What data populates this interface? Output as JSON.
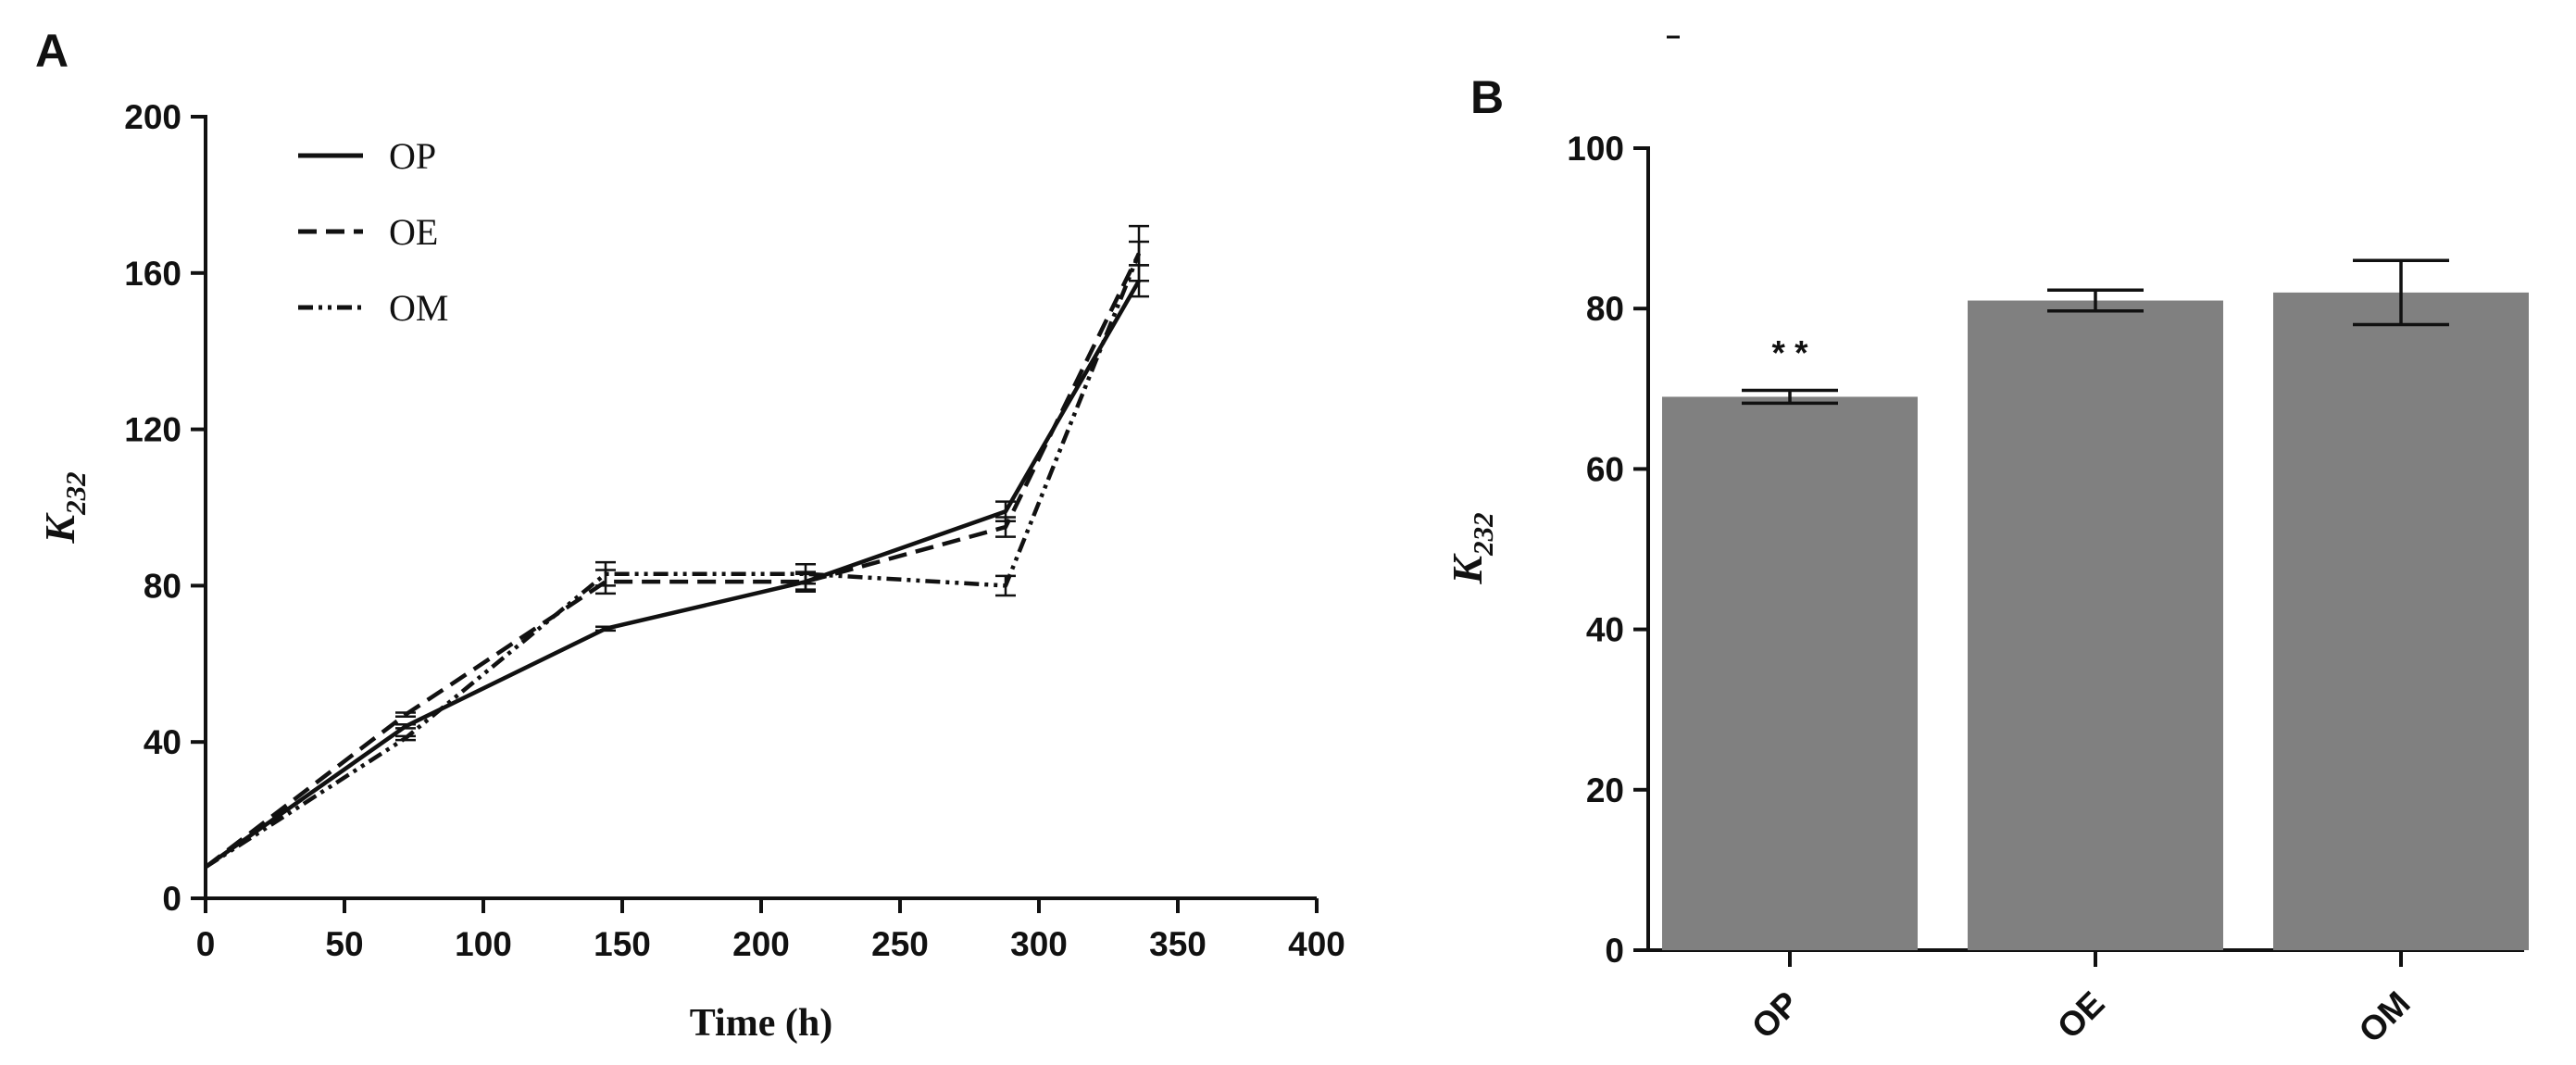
{
  "chart_data": [
    {
      "panel": "A",
      "type": "line",
      "xlabel": "Time (h)",
      "ylabel": "K",
      "ylabel_subscript": "232",
      "xlim": [
        0,
        400
      ],
      "ylim": [
        0,
        200
      ],
      "xticks": [
        0,
        50,
        100,
        150,
        200,
        250,
        300,
        350,
        400
      ],
      "yticks": [
        0,
        40,
        80,
        120,
        160,
        200
      ],
      "grid": false,
      "legend_position": "top-left",
      "series": [
        {
          "name": "OP",
          "dash": "solid",
          "x": [
            0,
            72,
            144,
            216,
            288,
            336
          ],
          "y": [
            8,
            44,
            69,
            81,
            99,
            158
          ],
          "err": [
            0,
            0.5,
            0.5,
            2,
            2.5,
            4
          ]
        },
        {
          "name": "OE",
          "dash": "dashed",
          "x": [
            0,
            72,
            144,
            216,
            288,
            336
          ],
          "y": [
            8,
            47,
            81,
            81,
            95,
            165
          ],
          "err": [
            0,
            0.5,
            3,
            2.5,
            2.5,
            3
          ]
        },
        {
          "name": "OM",
          "dash": "dash-dot-dot",
          "x": [
            0,
            72,
            144,
            216,
            288,
            336
          ],
          "y": [
            8,
            41,
            83,
            83,
            80,
            165
          ],
          "err": [
            0,
            0.5,
            3,
            2.5,
            2.5,
            7
          ]
        }
      ]
    },
    {
      "panel": "B",
      "type": "bar",
      "categories": [
        "OP",
        "OE",
        "OM"
      ],
      "values": [
        69,
        81,
        82
      ],
      "errors": [
        0.8,
        1.3,
        4
      ],
      "ylabel": "K",
      "ylabel_subscript": "232",
      "ylim": [
        0,
        100
      ],
      "yticks": [
        0,
        20,
        40,
        60,
        80,
        100
      ],
      "annotation": "* *",
      "annotation_category": "OP",
      "bar_color": "#808080"
    }
  ]
}
